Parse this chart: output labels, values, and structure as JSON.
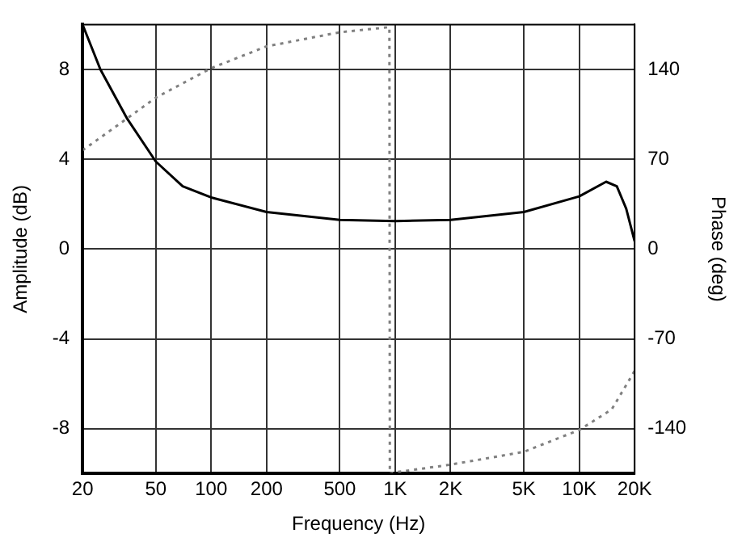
{
  "chart_data": {
    "type": "line",
    "xlabel": "Frequency (Hz)",
    "ylabel": "Amplitude (dB)",
    "y2label": "Phase (deg)",
    "log": "x",
    "grid": true,
    "legend": false,
    "marker": "none",
    "xlim": [
      20,
      20000
    ],
    "xticks": [
      20,
      50,
      100,
      200,
      500,
      {
        "value": 1000,
        "label": "1K"
      },
      {
        "value": 2000,
        "label": "2K"
      },
      {
        "value": 5000,
        "label": "5K"
      },
      {
        "value": 10000,
        "label": "10K"
      },
      {
        "value": 20000,
        "label": "20K"
      }
    ],
    "ylim": [
      -10,
      10
    ],
    "yticks": [
      -8,
      -4,
      0,
      4,
      8
    ],
    "y2lim": [
      -175,
      175
    ],
    "y2ticks": [
      -140,
      -70,
      0,
      70,
      140
    ],
    "series": [
      {
        "color": "#000000",
        "line_style": "solid",
        "x": [
          20,
          25,
          35,
          50,
          70,
          100,
          200,
          500,
          1000,
          2000,
          5000,
          10000,
          14000,
          16000,
          18000,
          20000
        ],
        "values": [
          10,
          8,
          5.8,
          3.9,
          2.8,
          2.3,
          1.65,
          1.3,
          1.25,
          1.3,
          1.65,
          2.35,
          3,
          2.8,
          1.8,
          0.35
        ]
      },
      {
        "color": "#808080",
        "line_style": "dotted",
        "axis": "y2",
        "x": [
          20,
          30,
          50,
          100,
          200,
          500,
          930,
          935,
          1000,
          2000,
          5000,
          10000,
          15000,
          20000
        ],
        "values": [
          77,
          95,
          118,
          141,
          158,
          169,
          173,
          -175,
          -174,
          -168,
          -158,
          -141,
          -125,
          -95
        ]
      }
    ]
  }
}
